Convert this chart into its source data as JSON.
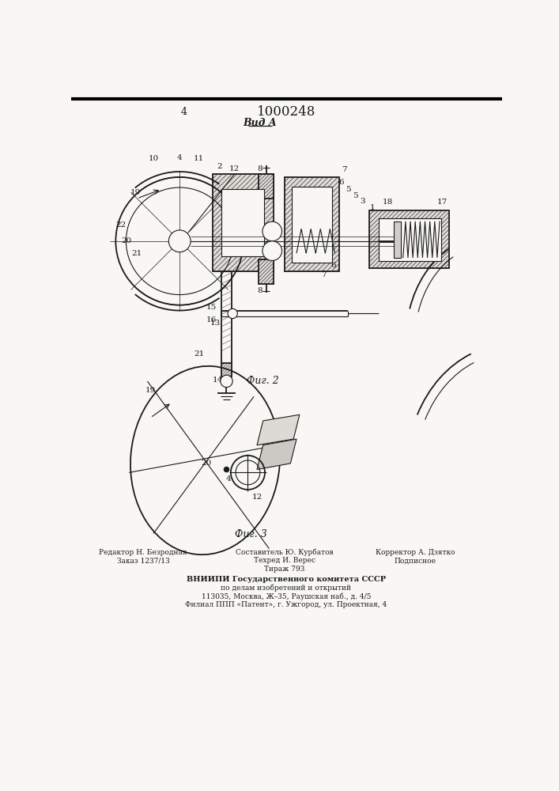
{
  "title": "1000248",
  "view_label": "Вид A",
  "fig2_label": "Фиг. 2",
  "fig3_label": "Фиг. 3",
  "footer_left_line1": "Редактор Н. Безродная",
  "footer_left_line2": "Заказ 1237/13",
  "footer_center_line1": "Составитель Ю. Курбатов",
  "footer_center_line2": "Техред И. Верес",
  "footer_center_line3": "Тираж 793",
  "footer_center_main": "ВНИИПИ Государственного комитета СССР",
  "footer_center_sub1": "по делам изобретений и открытий",
  "footer_center_sub2": "113035, Москва, Ж–35, Раушская наб., д. 4/5",
  "footer_center_sub3": "Филиал ППП «Патент», г. Ужгород, ул. Проектная, 4",
  "footer_right_line1": "Корректор А. Дзятко",
  "footer_right_line2": "Подписное",
  "bg_color": "#f8f7f4",
  "line_color": "#1a1a1a"
}
